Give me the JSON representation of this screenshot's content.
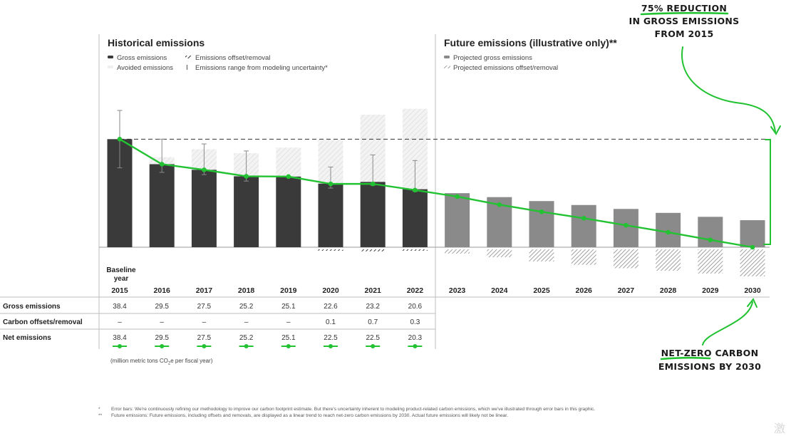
{
  "headings": {
    "historical": "Historical emissions",
    "future": "Future emissions (illustrative only)**"
  },
  "legend_left": [
    {
      "swatch": "solid-dark",
      "label": "Gross emissions"
    },
    {
      "swatch": "hatch-dark",
      "label": "Emissions offset/removal"
    },
    {
      "swatch": "light",
      "label": "Avoided emissions"
    },
    {
      "swatch": "errorbar",
      "label": "Emissions range from modeling uncertainty*"
    }
  ],
  "legend_right": [
    {
      "swatch": "solid-gray",
      "label": "Projected gross emissions"
    },
    {
      "swatch": "hatch-gray",
      "label": "Projected emissions offset/removal"
    }
  ],
  "baseline_label": [
    "Baseline",
    "year"
  ],
  "row_labels": [
    "Gross emissions",
    "Carbon offsets/removal",
    "Net emissions"
  ],
  "table_values": {
    "gross": [
      "38.4",
      "29.5",
      "27.5",
      "25.2",
      "25.1",
      "22.6",
      "23.2",
      "20.6"
    ],
    "offsets": [
      "–",
      "–",
      "–",
      "–",
      "–",
      "0.1",
      "0.7",
      "0.3"
    ],
    "net": [
      "38.4",
      "29.5",
      "27.5",
      "25.2",
      "25.1",
      "22.5",
      "22.5",
      "20.3"
    ]
  },
  "units_note": {
    "main": "(million metric tons CO",
    "sub": "2",
    "rest": "e per fiscal year)"
  },
  "annotations": {
    "reduction": [
      "75% REDUCTION",
      "IN GROSS EMISSIONS",
      "FROM 2015"
    ],
    "netzero": [
      "NET-ZERO CARBON",
      "EMISSIONS BY 2030"
    ]
  },
  "footnotes": [
    {
      "mark": "*",
      "text": "Error bars: We're continuously refining our methodology to improve our carbon footprint estimate. But there's uncertainty inherent to modeling product-related carbon emissions, which we've illustrated through error bars in this graphic."
    },
    {
      "mark": "**",
      "text": "Future emissions: Future emissions, including offsets and removals, are displayed as a linear trend to reach net-zero carbon emissions by 2030. Actual future emissions will likely not be linear."
    }
  ],
  "watermark": "激",
  "colors": {
    "gross": "#3a3a3a",
    "projected": "#8a8a8a",
    "avoided": "#dcdcdc",
    "net_line": "#22c232",
    "hatch": "#555555"
  },
  "chart_data": {
    "type": "bar",
    "categories": [
      "2015",
      "2016",
      "2017",
      "2018",
      "2019",
      "2020",
      "2021",
      "2022",
      "2023",
      "2024",
      "2025",
      "2026",
      "2027",
      "2028",
      "2029",
      "2030"
    ],
    "series": [
      {
        "name": "Gross emissions",
        "values": [
          38.4,
          29.5,
          27.5,
          25.2,
          25.1,
          22.6,
          23.2,
          20.6,
          null,
          null,
          null,
          null,
          null,
          null,
          null,
          null
        ]
      },
      {
        "name": "Projected gross emissions",
        "values": [
          null,
          null,
          null,
          null,
          null,
          null,
          null,
          null,
          19.2,
          17.8,
          16.4,
          15.0,
          13.6,
          12.2,
          10.8,
          9.6
        ]
      },
      {
        "name": "Avoided emissions",
        "values": [
          0,
          2.5,
          7.3,
          8.2,
          10.3,
          15.6,
          23.9,
          28.6,
          null,
          null,
          null,
          null,
          null,
          null,
          null,
          null
        ]
      },
      {
        "name": "Emissions offset/removal",
        "values": [
          0,
          0,
          0,
          0,
          0,
          0.1,
          0.7,
          0.3,
          null,
          null,
          null,
          null,
          null,
          null,
          null,
          null
        ]
      },
      {
        "name": "Projected emissions offset/removal",
        "values": [
          null,
          null,
          null,
          null,
          null,
          null,
          null,
          null,
          1.5,
          2.8,
          4.3,
          5.5,
          6.7,
          7.6,
          8.6,
          9.6
        ]
      },
      {
        "name": "Net emissions",
        "values": [
          38.4,
          29.5,
          27.5,
          25.2,
          25.1,
          22.5,
          22.5,
          20.3,
          18.0,
          15.1,
          12.6,
          10.3,
          7.8,
          5.3,
          2.6,
          0
        ]
      }
    ],
    "error_bars": [
      [
        28.2,
        48.6
      ],
      [
        26.6,
        38.4
      ],
      [
        25.8,
        36.7
      ],
      [
        23.5,
        34.2
      ],
      null,
      [
        21.0,
        28.5
      ],
      [
        22.0,
        32.8
      ],
      [
        19.8,
        30.8
      ],
      null,
      null,
      null,
      null,
      null,
      null,
      null,
      null
    ],
    "baseline_value": 38.4,
    "ylim": [
      -12,
      52
    ],
    "grid": false
  }
}
